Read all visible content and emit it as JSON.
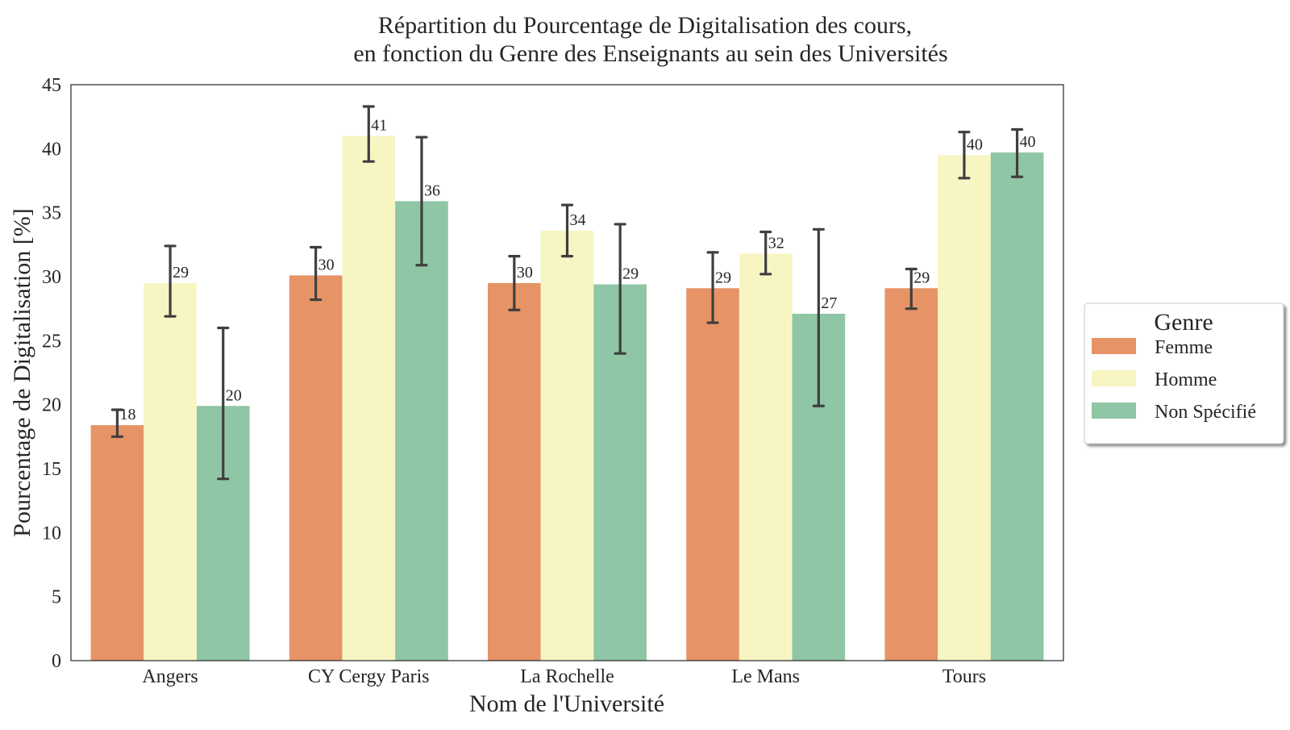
{
  "chart_data": {
    "type": "bar",
    "title": "Répartition du Pourcentage de Digitalisation des cours,",
    "subtitle": "en fonction du Genre des Enseignants au sein des Universités",
    "xlabel": "Nom de l'Université",
    "ylabel": "Pourcentage de Digitalisation [%]",
    "ylim": [
      0,
      45
    ],
    "yticks": [
      "0",
      "5",
      "10",
      "15",
      "20",
      "25",
      "30",
      "35",
      "40",
      "45"
    ],
    "grid": false,
    "legend_position": "right, outside the plot",
    "legend_title": "Genre",
    "categories": [
      "Angers",
      "CY Cergy Paris",
      "La Rochelle",
      "Le Mans",
      "Tours"
    ],
    "series": [
      {
        "name": "Femme",
        "color": "#e69366",
        "values": [
          18.4,
          30.1,
          29.5,
          29.1,
          29.1
        ],
        "error_low": [
          17.5,
          28.2,
          27.4,
          26.4,
          27.5
        ],
        "error_high": [
          19.6,
          32.3,
          31.6,
          31.9,
          30.6
        ],
        "labels": [
          "18",
          "30",
          "30",
          "29",
          "29"
        ]
      },
      {
        "name": "Homme",
        "color": "#f7f6c3",
        "values": [
          29.5,
          41.0,
          33.6,
          31.8,
          39.5
        ],
        "error_low": [
          26.9,
          39.0,
          31.6,
          30.2,
          37.7
        ],
        "error_high": [
          32.4,
          43.3,
          35.6,
          33.5,
          41.3
        ],
        "labels": [
          "29",
          "41",
          "34",
          "32",
          "40"
        ]
      },
      {
        "name": "Non Spécifié",
        "color": "#8fc6a5",
        "values": [
          19.9,
          35.9,
          29.4,
          27.1,
          39.7
        ],
        "error_low": [
          14.2,
          30.9,
          24.0,
          19.9,
          37.8
        ],
        "error_high": [
          26.0,
          40.9,
          34.1,
          33.7,
          41.5
        ],
        "labels": [
          "20",
          "36",
          "29",
          "27",
          "40"
        ]
      }
    ]
  }
}
